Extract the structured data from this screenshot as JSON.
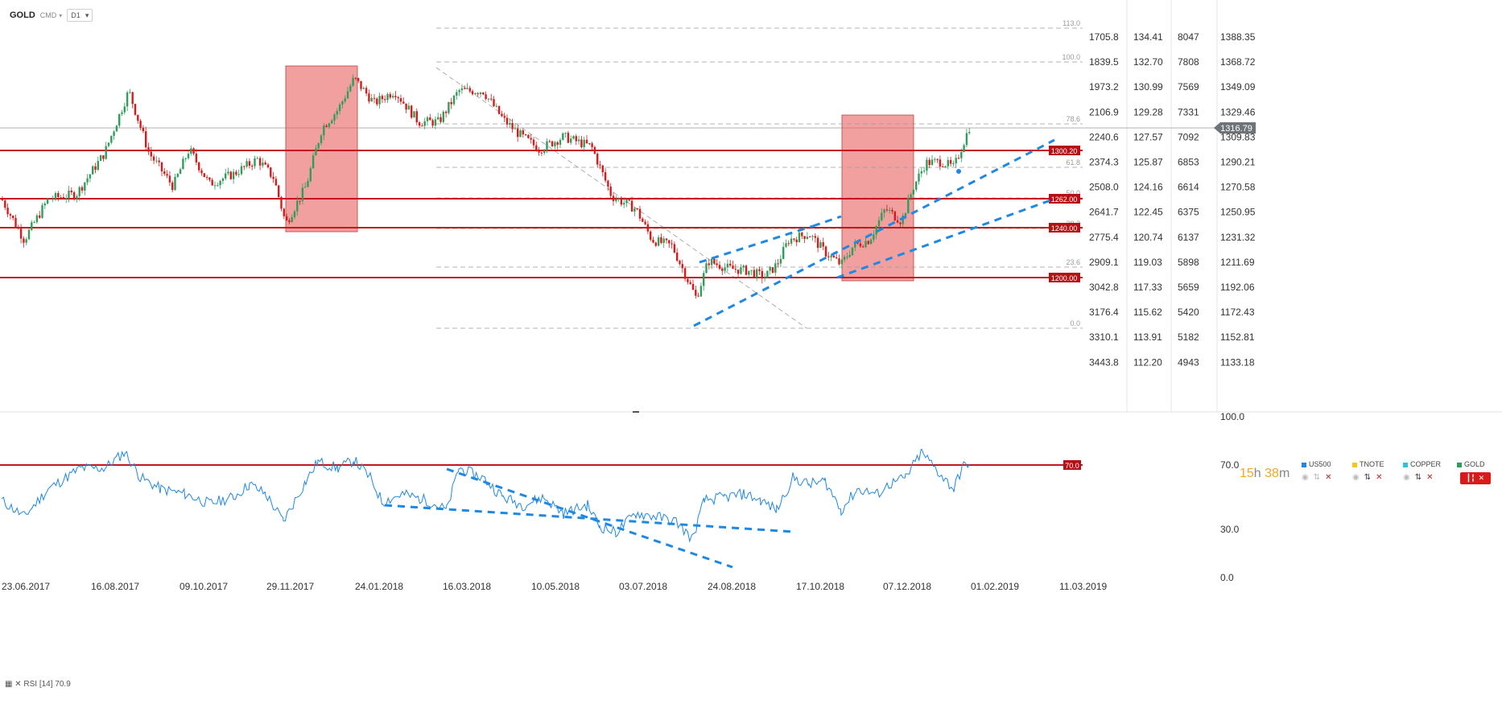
{
  "header": {
    "symbol": "GOLD",
    "asset_class": "CMD",
    "timeframe": "D1"
  },
  "price_scales": {
    "gold": [
      "1388.35",
      "1368.72",
      "1349.09",
      "1329.46",
      "1309.83",
      "1290.21",
      "1270.58",
      "1250.95",
      "1231.32",
      "1211.69",
      "1192.06",
      "1172.43",
      "1152.81",
      "1133.18"
    ],
    "us500": [
      "1705.8",
      "1839.5",
      "1973.2",
      "2106.9",
      "2240.6",
      "2374.3",
      "2508.0",
      "2641.7",
      "2775.4",
      "2909.1",
      "3042.8",
      "3176.4",
      "3310.1",
      "3443.8"
    ],
    "tnote": [
      "134.41",
      "132.70",
      "130.99",
      "129.28",
      "127.57",
      "125.87",
      "124.16",
      "122.45",
      "120.74",
      "119.03",
      "117.33",
      "115.62",
      "113.91",
      "112.20"
    ],
    "copper": [
      "8047",
      "7808",
      "7569",
      "7331",
      "7092",
      "6853",
      "6614",
      "6375",
      "6137",
      "5898",
      "5659",
      "5420",
      "5182",
      "4943"
    ]
  },
  "current_price": "1316.79",
  "fib_levels": [
    "113.0",
    "100.0",
    "78.6",
    "61.8",
    "50.0",
    "38.2",
    "23.6",
    "0.0"
  ],
  "horizontal_levels": [
    "1300.20",
    "1262.00",
    "1240.00",
    "1200.00"
  ],
  "countdown": {
    "hours": "15",
    "h_suffix": "h",
    "minutes": "38",
    "m_suffix": "m"
  },
  "legend": [
    {
      "name": "US500",
      "color": "#1e88e5"
    },
    {
      "name": "TNOTE",
      "color": "#f5c518"
    },
    {
      "name": "COPPER",
      "color": "#26c6da"
    },
    {
      "name": "GOLD",
      "color": "#2e9e5b"
    }
  ],
  "rsi": {
    "label": "RSI [14]",
    "value": "70.9",
    "scale": [
      "100.0",
      "70.0",
      "30.0",
      "0.0"
    ],
    "level_label": "70.0"
  },
  "dates": [
    "23.06.2017",
    "16.08.2017",
    "09.10.2017",
    "29.11.2017",
    "24.01.2018",
    "16.03.2018",
    "10.05.2018",
    "03.07.2018",
    "24.08.2018",
    "17.10.2018",
    "07.12.2018",
    "01.02.2019",
    "11.03.2019"
  ],
  "colors": {
    "up": "#2e9e5b",
    "down": "#d81a1a",
    "level": "#c8141e",
    "trend": "#1e88e5",
    "zone": "#e8615f"
  }
}
